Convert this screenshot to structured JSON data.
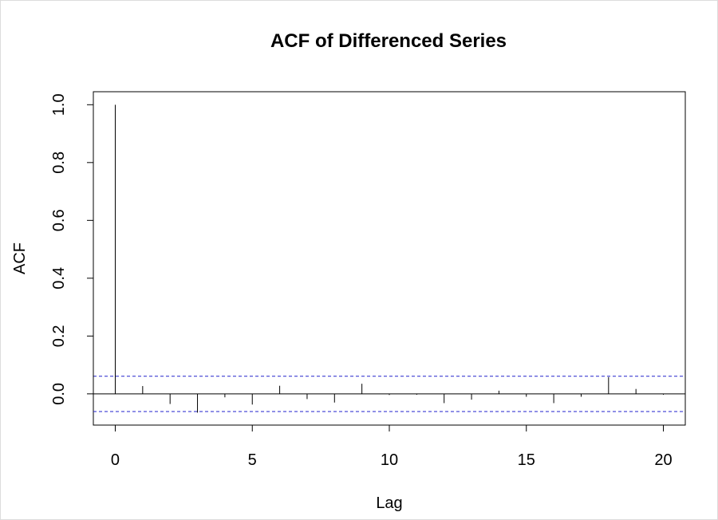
{
  "chart_data": {
    "type": "bar",
    "title": "ACF of Differenced Series",
    "xlabel": "Lag",
    "ylabel": "ACF",
    "xlim": [
      -0.8,
      20.8
    ],
    "ylim": [
      -0.108,
      1.045
    ],
    "x_ticks": [
      0,
      5,
      10,
      15,
      20
    ],
    "y_ticks": [
      0.0,
      0.2,
      0.4,
      0.6,
      0.8,
      1.0
    ],
    "y_tick_labels": [
      "0.0",
      "0.2",
      "0.4",
      "0.6",
      "0.8",
      "1.0"
    ],
    "lags": [
      0,
      1,
      2,
      3,
      4,
      5,
      6,
      7,
      8,
      9,
      10,
      11,
      12,
      13,
      14,
      15,
      16,
      17,
      18,
      19,
      20
    ],
    "acf": [
      1.0,
      0.027,
      -0.035,
      -0.065,
      -0.012,
      -0.037,
      0.028,
      -0.018,
      -0.03,
      0.035,
      -0.004,
      -0.003,
      -0.032,
      -0.02,
      0.011,
      -0.01,
      -0.032,
      -0.01,
      0.058,
      0.017,
      -0.003
    ],
    "confidence_bound": 0.061,
    "colors": {
      "bars": "#000000",
      "confidence": "#2222cc",
      "zero_line": "#000000"
    }
  }
}
